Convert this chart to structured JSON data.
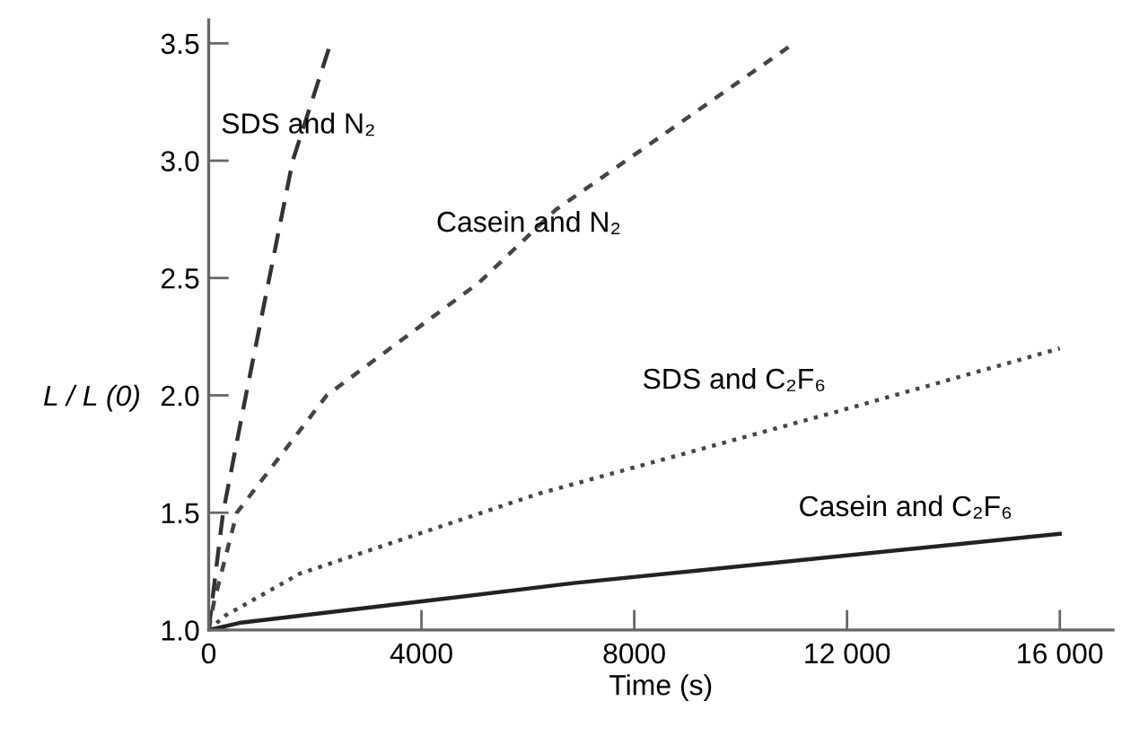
{
  "chart_data": {
    "type": "line",
    "xlabel": "Time (s)",
    "ylabel": "L / L (0)",
    "xlim": [
      0,
      17000
    ],
    "ylim": [
      1.0,
      3.6
    ],
    "xticks": [
      0,
      4000,
      8000,
      {
        "value": 12000,
        "label": "12 000"
      },
      {
        "value": 16000,
        "label": "16 000"
      }
    ],
    "yticks": [
      {
        "value": 1.0,
        "label": "1.0"
      },
      1.5,
      {
        "value": 2.0,
        "label": "2.0"
      },
      2.5,
      {
        "value": 3.0,
        "label": "3.0"
      },
      3.5
    ],
    "grid": false,
    "legend": false,
    "marker": "none",
    "series": [
      {
        "name": "SDS and N₂",
        "color": "#333333",
        "line_style": "dashed",
        "x": [
          0,
          270,
          700,
          1580,
          2290
        ],
        "values": [
          1.0,
          1.5,
          2.0,
          3.0,
          3.5
        ]
      },
      {
        "name": "Casein and N₂",
        "color": "#444444",
        "line_style": "dashed",
        "x": [
          0,
          100,
          530,
          2220,
          5080,
          6520,
          11000
        ],
        "values": [
          1.0,
          1.12,
          1.5,
          2.0,
          2.48,
          2.79,
          3.5
        ]
      },
      {
        "name": "SDS and C₂F₆",
        "color": "#444444",
        "line_style": "dotted",
        "x": [
          0,
          300,
          1710,
          6190,
          11800,
          16000
        ],
        "values": [
          1.0,
          1.06,
          1.24,
          1.58,
          1.93,
          2.2
        ]
      },
      {
        "name": "Casein and C₂F₆",
        "color": "#222222",
        "line_style": "solid",
        "x": [
          0,
          570,
          3930,
          6860,
          16000
        ],
        "values": [
          1.0,
          1.03,
          1.12,
          1.2,
          1.41
        ]
      }
    ]
  }
}
